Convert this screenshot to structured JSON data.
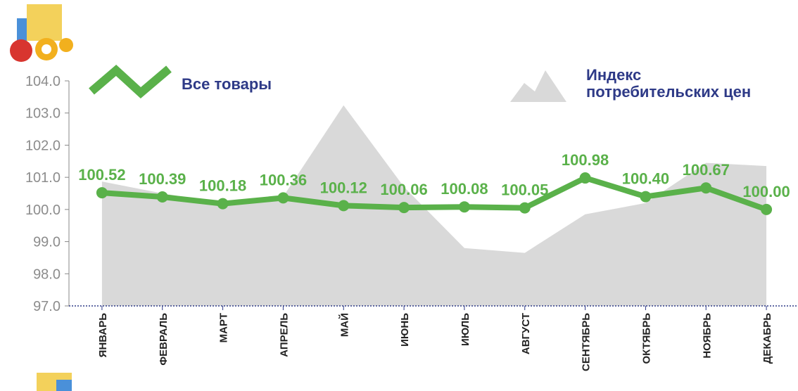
{
  "chart_data": {
    "type": "line",
    "categories": [
      "ЯНВАРЬ",
      "ФЕВРАЛЬ",
      "МАРТ",
      "АПРЕЛЬ",
      "МАЙ",
      "ИЮНЬ",
      "ИЮЛЬ",
      "АВГУСТ",
      "СЕНТЯБРЬ",
      "ОКТЯБРЬ",
      "НОЯБРЬ",
      "ДЕКАБРЬ"
    ],
    "series": [
      {
        "name": "Индекс потребительских цен",
        "color": "#d9d9d9",
        "kind": "area",
        "values": [
          100.87,
          100.5,
          100.2,
          100.4,
          103.24,
          100.7,
          98.8,
          98.65,
          99.85,
          100.2,
          101.45,
          101.35
        ]
      },
      {
        "name": "Все товары",
        "color": "#5ab14a",
        "kind": "line",
        "values": [
          100.52,
          100.39,
          100.18,
          100.36,
          100.12,
          100.06,
          100.08,
          100.05,
          100.98,
          100.4,
          100.67,
          100.0
        ],
        "value_labels": [
          "100.52",
          "100.39",
          "100.18",
          "100.36",
          "100.12",
          "100.06",
          "100.08",
          "100.05",
          "100.98",
          "100.40",
          "100.67",
          "100.00"
        ]
      }
    ],
    "ylim": [
      97,
      104
    ],
    "yticks": [
      {
        "value": 97,
        "label": "97.0"
      },
      {
        "value": 98,
        "label": "98.0"
      },
      {
        "value": 99,
        "label": "99.0"
      },
      {
        "value": 100,
        "label": "100.0"
      },
      {
        "value": 101,
        "label": "101.0"
      },
      {
        "value": 102,
        "label": "102.0"
      },
      {
        "value": 103,
        "label": "103.0"
      },
      {
        "value": 104,
        "label": "104.0"
      }
    ]
  }
}
